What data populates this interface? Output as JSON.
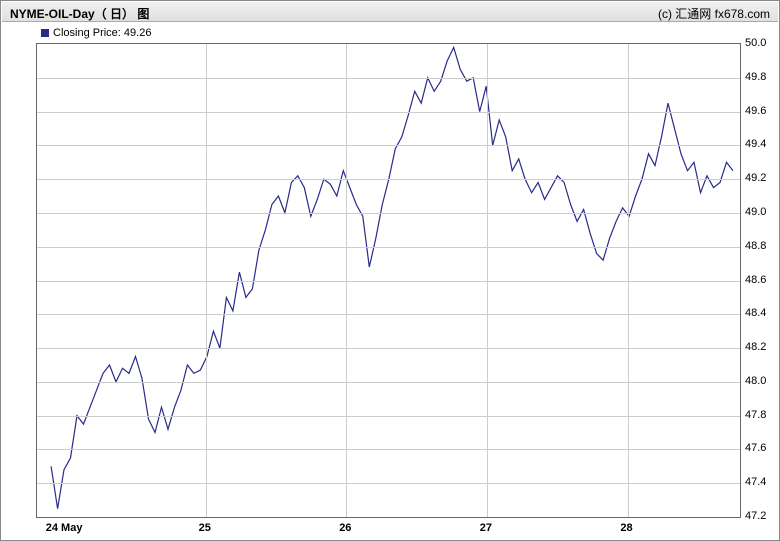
{
  "chart": {
    "type": "line",
    "title": "NYME-OIL-Day（ 日） 图",
    "copyright": "(c) 汇通网 fx678.com",
    "legend_label": "Closing Price: 49.26",
    "background_color": "#ffffff",
    "border_color": "#666666",
    "grid_color": "#cccccc",
    "line_color": "#2a2a8a",
    "line_width": 1.2,
    "text_color": "#000000",
    "title_fontsize": 12,
    "label_fontsize": 11,
    "ylim": [
      47.2,
      50.0
    ],
    "ytick_step": 0.2,
    "yticks": [
      47.2,
      47.4,
      47.6,
      47.8,
      48.0,
      48.2,
      48.4,
      48.6,
      48.8,
      49.0,
      49.2,
      49.4,
      49.6,
      49.8,
      50.0
    ],
    "x_categories": [
      "24 May",
      "25",
      "26",
      "27",
      "28"
    ],
    "x_positions_pct": [
      4,
      24,
      44,
      64,
      84
    ],
    "values": [
      47.5,
      47.25,
      47.48,
      47.55,
      47.8,
      47.75,
      47.85,
      47.95,
      48.05,
      48.1,
      48.0,
      48.08,
      48.05,
      48.15,
      48.02,
      47.78,
      47.7,
      47.85,
      47.72,
      47.85,
      47.95,
      48.1,
      48.05,
      48.07,
      48.15,
      48.3,
      48.2,
      48.5,
      48.42,
      48.65,
      48.5,
      48.55,
      48.78,
      48.9,
      49.05,
      49.1,
      49.0,
      49.18,
      49.22,
      49.15,
      48.98,
      49.08,
      49.2,
      49.17,
      49.1,
      49.25,
      49.15,
      49.05,
      48.98,
      48.68,
      48.85,
      49.05,
      49.2,
      49.38,
      49.45,
      49.58,
      49.72,
      49.65,
      49.8,
      49.72,
      49.78,
      49.9,
      49.98,
      49.85,
      49.78,
      49.8,
      49.6,
      49.75,
      49.4,
      49.55,
      49.45,
      49.25,
      49.32,
      49.2,
      49.12,
      49.18,
      49.08,
      49.15,
      49.22,
      49.18,
      49.05,
      48.95,
      49.02,
      48.88,
      48.76,
      48.72,
      48.85,
      48.95,
      49.03,
      48.98,
      49.1,
      49.2,
      49.35,
      49.28,
      49.45,
      49.65,
      49.5,
      49.35,
      49.25,
      49.3,
      49.12,
      49.22,
      49.15,
      49.18,
      49.3,
      49.25
    ]
  }
}
